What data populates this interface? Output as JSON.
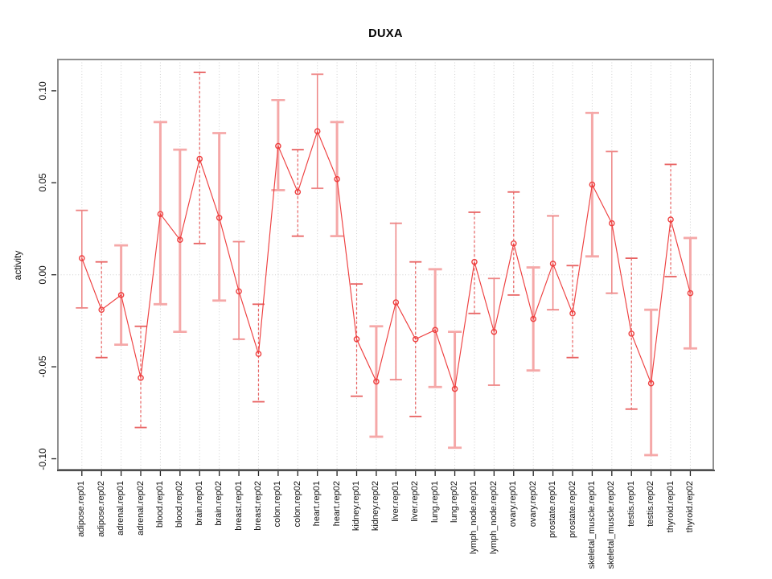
{
  "title": "DUXA",
  "ylabel": "activity",
  "colors": {
    "point_line": "#ee3f3f",
    "errbar_dashed": "#e86262",
    "errbar_solid": "#ee8585",
    "errbar_thick": "#f5a8a8",
    "grid": "#cfcfcf",
    "box_border": "#8f8f8f",
    "axis": "#222222",
    "text": "#111111"
  },
  "chart_data": {
    "type": "line",
    "title": "DUXA",
    "xlabel": "",
    "ylabel": "activity",
    "ylim": [
      -0.113,
      0.113
    ],
    "yticks": [
      0.1,
      0.05,
      0.0,
      -0.05,
      -0.1
    ],
    "ytick_labels": [
      "0.10",
      "0.05",
      "0.00",
      "-0.05",
      "-0.10"
    ],
    "legend": "none",
    "grid": "vertical dotted gridline at every category; dotted horizontal line at y=0",
    "marker": "open-circle",
    "categories": [
      "adipose.rep01",
      "adipose.rep02",
      "adrenal.rep01",
      "adrenal.rep02",
      "blood.rep01",
      "blood.rep02",
      "brain.rep01",
      "brain.rep02",
      "breast.rep01",
      "breast.rep02",
      "colon.rep01",
      "colon.rep02",
      "heart.rep01",
      "heart.rep02",
      "kidney.rep01",
      "kidney.rep02",
      "liver.rep01",
      "liver.rep02",
      "lung.rep01",
      "lung.rep02",
      "lymph_node.rep01",
      "lymph_node.rep02",
      "ovary.rep01",
      "ovary.rep02",
      "prostate.rep01",
      "prostate.rep02",
      "skeletal_muscle.rep01",
      "skeletal_muscle.rep02",
      "testis.rep01",
      "testis.rep02",
      "thyroid.rep01",
      "thyroid.rep02"
    ],
    "series": [
      {
        "name": "activity",
        "values": [
          0.009,
          -0.019,
          -0.011,
          -0.056,
          0.033,
          0.019,
          0.063,
          0.031,
          -0.009,
          -0.043,
          0.07,
          0.045,
          0.078,
          0.052,
          -0.035,
          -0.058,
          -0.015,
          -0.035,
          -0.03,
          -0.062,
          0.007,
          -0.031,
          0.017,
          -0.024,
          0.006,
          -0.021,
          0.049,
          0.028,
          -0.032,
          -0.059,
          0.03,
          -0.01
        ],
        "err_lo": [
          -0.018,
          -0.045,
          -0.038,
          -0.083,
          -0.016,
          -0.031,
          0.017,
          -0.014,
          -0.035,
          -0.069,
          0.046,
          0.021,
          0.047,
          0.021,
          -0.066,
          -0.088,
          -0.057,
          -0.077,
          -0.061,
          -0.094,
          -0.021,
          -0.06,
          -0.011,
          -0.052,
          -0.019,
          -0.045,
          0.01,
          -0.01,
          -0.073,
          -0.098,
          -0.001,
          -0.04
        ],
        "err_hi": [
          0.035,
          0.007,
          0.016,
          -0.028,
          0.083,
          0.068,
          0.11,
          0.077,
          0.018,
          -0.016,
          0.095,
          0.068,
          0.109,
          0.083,
          -0.005,
          -0.028,
          0.028,
          0.007,
          0.003,
          -0.031,
          0.034,
          -0.002,
          0.045,
          0.004,
          0.032,
          0.005,
          0.088,
          0.067,
          0.009,
          -0.019,
          0.06,
          0.02
        ],
        "bar_styles": [
          "solid",
          "dashed",
          "thick",
          "dashed",
          "thick",
          "thick",
          "dashed",
          "thick",
          "solid",
          "dashed",
          "thick",
          "dashed",
          "solid",
          "thick",
          "dashed",
          "thick",
          "solid",
          "dashed",
          "thick",
          "thick",
          "dashed",
          "solid",
          "dashed",
          "thick",
          "solid",
          "dashed",
          "thick",
          "solid",
          "dashed",
          "thick",
          "dashed",
          "thick"
        ]
      }
    ]
  }
}
